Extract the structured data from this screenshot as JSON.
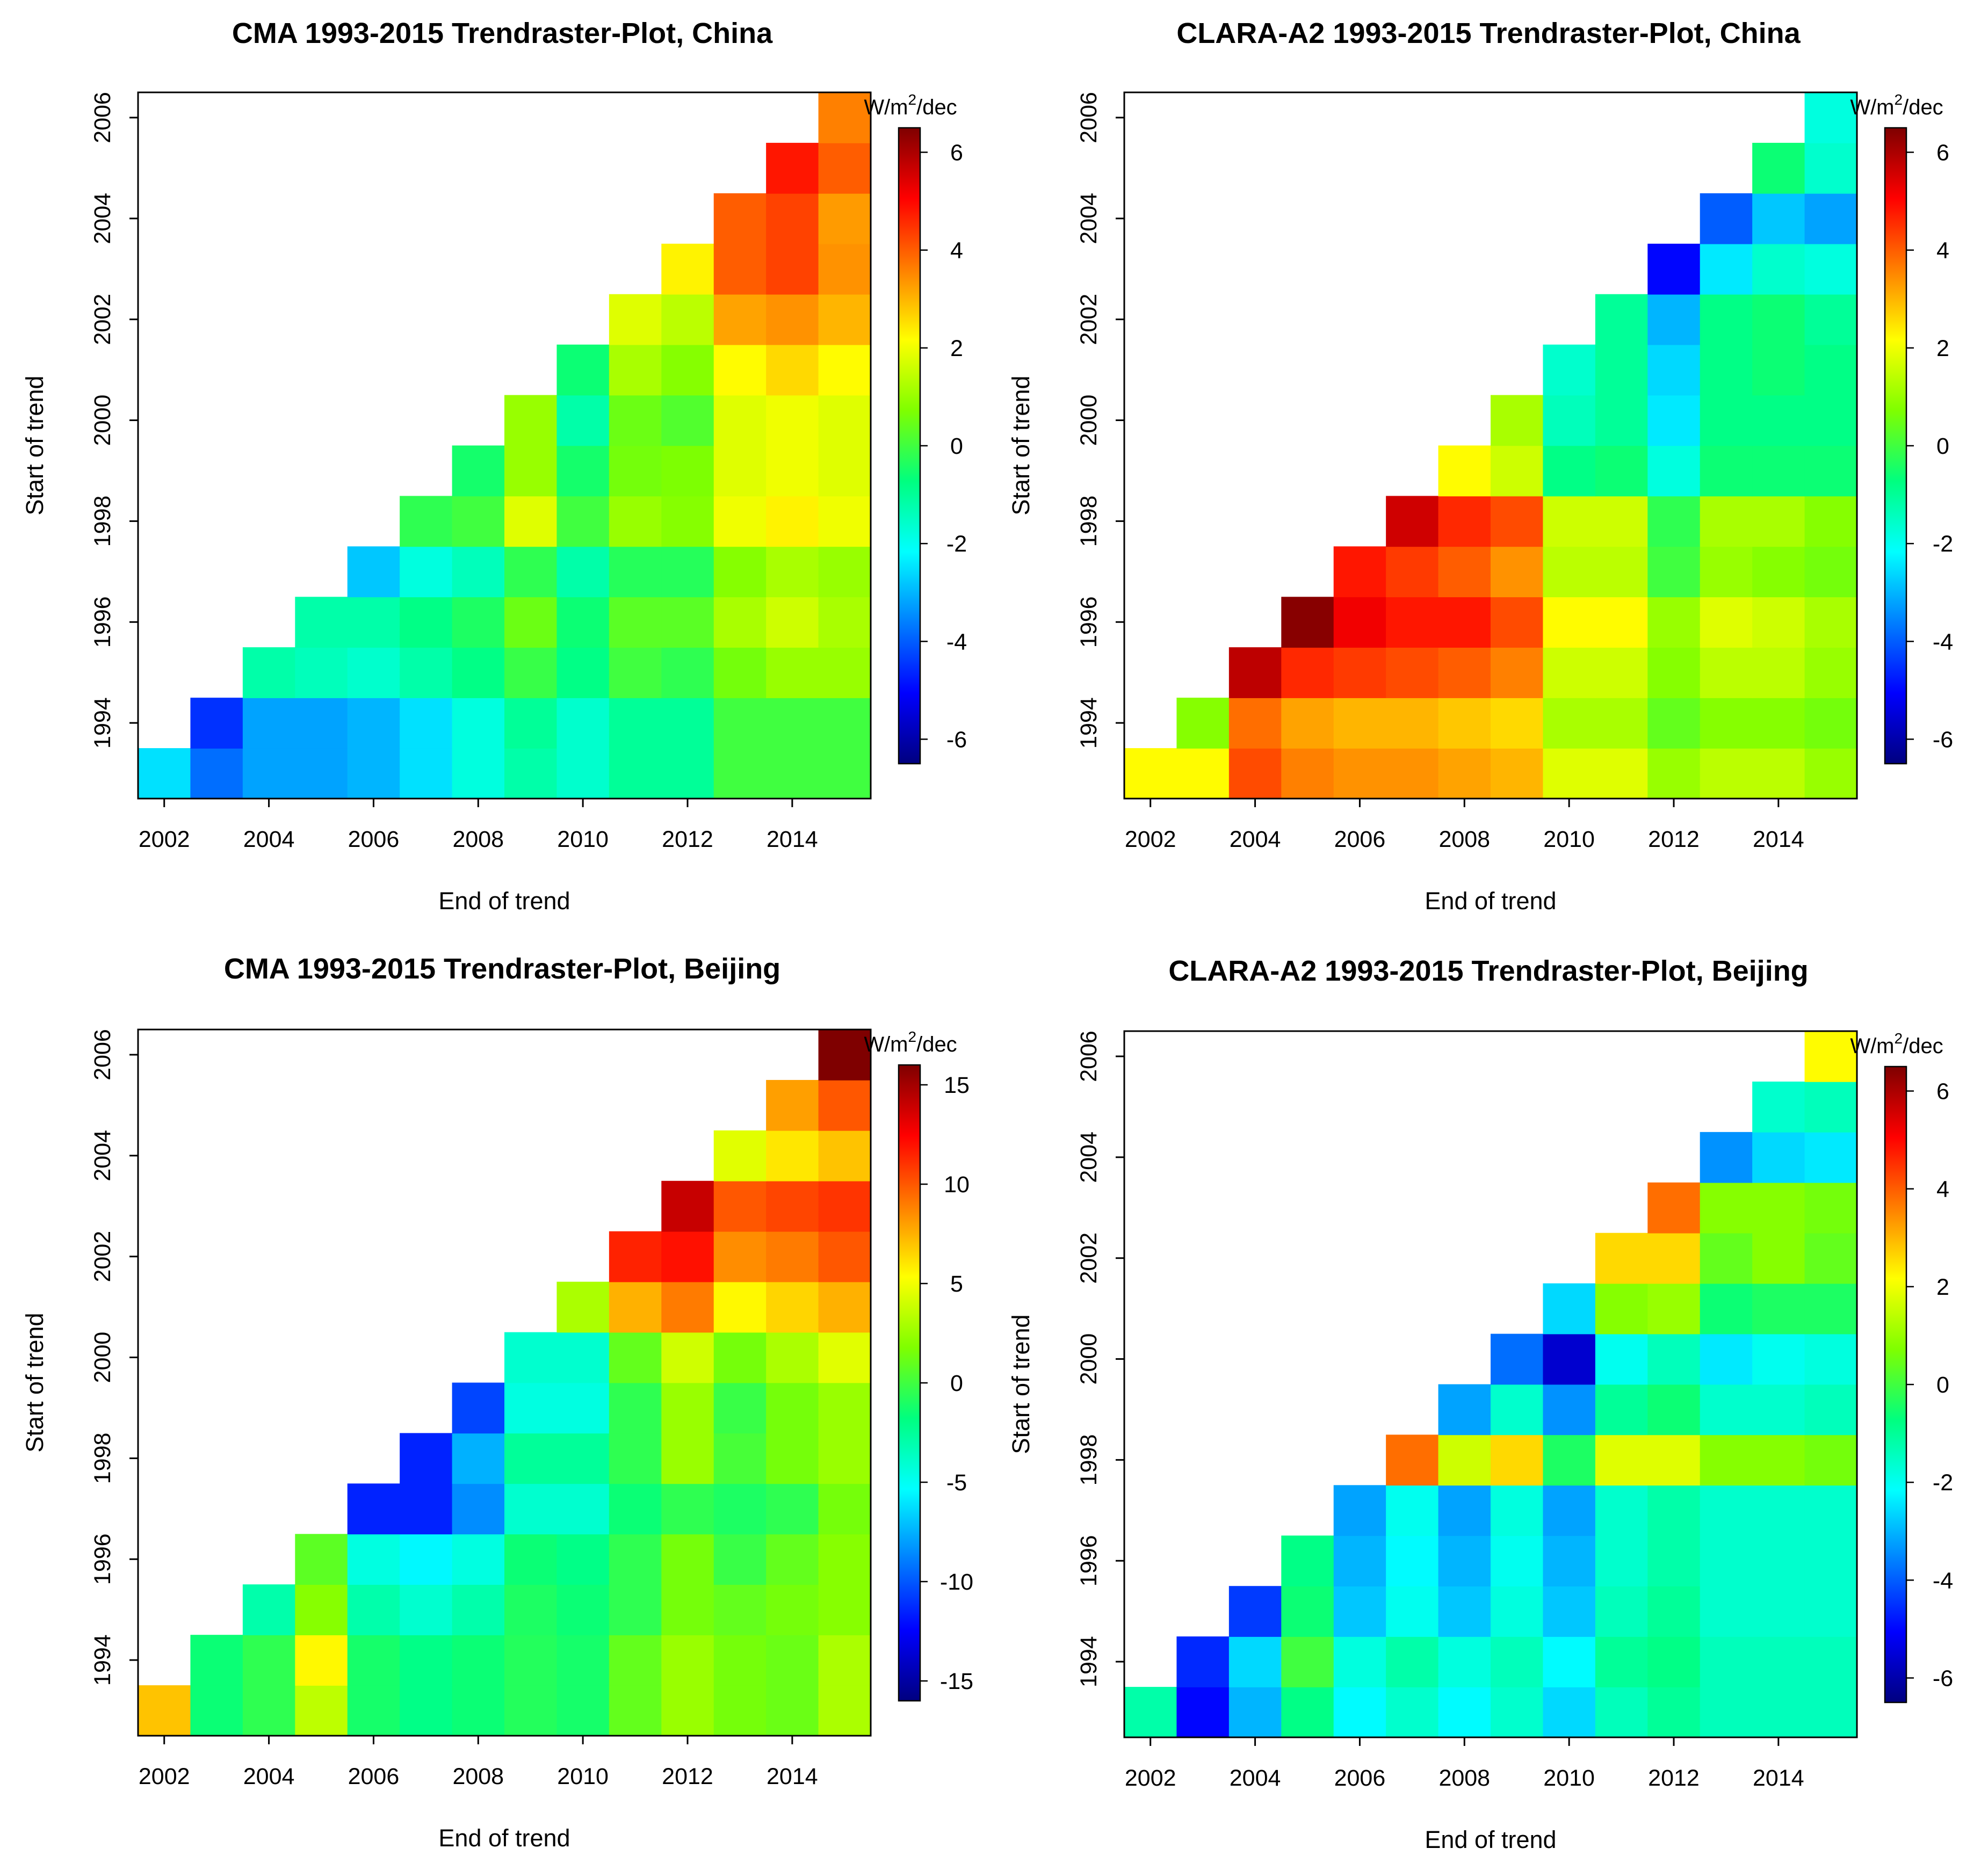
{
  "figure": {
    "colors": {
      "palette": [
        "#00007F",
        "#0000FF",
        "#007FFF",
        "#00FFFF",
        "#00FF7F",
        "#7FFF00",
        "#FFFF00",
        "#FF7F00",
        "#FF0000",
        "#7F0000"
      ],
      "axis": "#000000",
      "background": "#FFFFFF"
    }
  },
  "chart_data": [
    {
      "type": "heatmap",
      "title": "CMA 1993-2015 Trendraster-Plot, China",
      "xlabel": "End of trend",
      "ylabel": "Start of trend",
      "unit_label": {
        "prefix": "W/m",
        "sup": "2",
        "suffix": "/dec"
      },
      "x_ticks": [
        "2002",
        "2004",
        "2006",
        "2008",
        "2010",
        "2012",
        "2014"
      ],
      "y_ticks": [
        "1994",
        "1996",
        "1998",
        "2000",
        "2002",
        "2004",
        "2006"
      ],
      "x_years": [
        2002,
        2003,
        2004,
        2005,
        2006,
        2007,
        2008,
        2009,
        2010,
        2011,
        2012,
        2013,
        2014,
        2015
      ],
      "y_years": [
        1993,
        1994,
        1995,
        1996,
        1997,
        1998,
        1999,
        2000,
        2001,
        2002,
        2003,
        2004,
        2005,
        2006
      ],
      "colorbar": {
        "min": -6.5,
        "max": 6.5,
        "ticks": [
          "-6",
          "-4",
          "-2",
          "0",
          "2",
          "4",
          "6"
        ]
      },
      "values": [
        [
          -2.5,
          -3.8,
          -3.2,
          -3.2,
          -3.0,
          -2.5,
          -1.8,
          -1.2,
          -1.6,
          -1.0,
          -1.0,
          0.0,
          0.0,
          0.0
        ],
        [
          null,
          -4.5,
          -3.2,
          -3.2,
          -3.0,
          -2.5,
          -1.8,
          -1.0,
          -1.6,
          -1.0,
          -1.0,
          0.0,
          0.0,
          0.0
        ],
        [
          null,
          null,
          -1.2,
          -1.4,
          -1.6,
          -1.2,
          -0.8,
          -0.1,
          -0.8,
          0.0,
          -0.2,
          0.6,
          1.0,
          1.0
        ],
        [
          null,
          null,
          null,
          -1.2,
          -1.2,
          -0.8,
          -0.4,
          0.5,
          -0.6,
          0.3,
          0.3,
          1.2,
          1.6,
          1.2
        ],
        [
          null,
          null,
          null,
          null,
          -2.8,
          -1.8,
          -1.4,
          -0.2,
          -1.2,
          -0.3,
          -0.3,
          0.8,
          1.2,
          1.0
        ],
        [
          null,
          null,
          null,
          null,
          null,
          -0.2,
          0.0,
          1.8,
          0.0,
          1.0,
          0.8,
          2.0,
          2.3,
          2.0
        ],
        [
          null,
          null,
          null,
          null,
          null,
          null,
          -0.5,
          1.0,
          -0.5,
          0.6,
          0.7,
          1.8,
          2.0,
          1.8
        ],
        [
          null,
          null,
          null,
          null,
          null,
          null,
          null,
          1.0,
          -1.2,
          0.5,
          0.2,
          1.8,
          2.0,
          1.8
        ],
        [
          null,
          null,
          null,
          null,
          null,
          null,
          null,
          null,
          -0.6,
          1.2,
          0.8,
          2.2,
          2.6,
          2.2
        ],
        [
          null,
          null,
          null,
          null,
          null,
          null,
          null,
          null,
          null,
          1.8,
          1.4,
          3.2,
          3.4,
          3.0
        ],
        [
          null,
          null,
          null,
          null,
          null,
          null,
          null,
          null,
          null,
          null,
          2.3,
          4.0,
          4.3,
          3.4
        ],
        [
          null,
          null,
          null,
          null,
          null,
          null,
          null,
          null,
          null,
          null,
          null,
          4.0,
          4.3,
          3.3
        ],
        [
          null,
          null,
          null,
          null,
          null,
          null,
          null,
          null,
          null,
          null,
          null,
          null,
          4.8,
          4.0
        ],
        [
          null,
          null,
          null,
          null,
          null,
          null,
          null,
          null,
          null,
          null,
          null,
          null,
          null,
          3.6
        ]
      ]
    },
    {
      "type": "heatmap",
      "title": "CLARA-A2 1993-2015 Trendraster-Plot, China",
      "xlabel": "End of trend",
      "ylabel": "Start of trend",
      "unit_label": {
        "prefix": "W/m",
        "sup": "2",
        "suffix": "/dec"
      },
      "x_ticks": [
        "2002",
        "2004",
        "2006",
        "2008",
        "2010",
        "2012",
        "2014"
      ],
      "y_ticks": [
        "1994",
        "1996",
        "1998",
        "2000",
        "2002",
        "2004",
        "2006"
      ],
      "x_years": [
        2002,
        2003,
        2004,
        2005,
        2006,
        2007,
        2008,
        2009,
        2010,
        2011,
        2012,
        2013,
        2014,
        2015
      ],
      "y_years": [
        1993,
        1994,
        1995,
        1996,
        1997,
        1998,
        1999,
        2000,
        2001,
        2002,
        2003,
        2004,
        2005,
        2006
      ],
      "colorbar": {
        "min": -6.5,
        "max": 6.5,
        "ticks": [
          "-6",
          "-4",
          "-2",
          "0",
          "2",
          "4",
          "6"
        ]
      },
      "values": [
        [
          2.2,
          2.2,
          4.2,
          3.6,
          3.4,
          3.4,
          3.2,
          3.0,
          1.8,
          1.8,
          1.0,
          1.4,
          1.4,
          1.0
        ],
        [
          null,
          0.8,
          3.8,
          3.2,
          3.0,
          3.0,
          2.8,
          2.6,
          1.2,
          1.2,
          0.4,
          0.8,
          0.8,
          0.6
        ],
        [
          null,
          null,
          5.8,
          4.6,
          4.4,
          4.2,
          4.0,
          3.6,
          1.6,
          1.6,
          0.8,
          1.4,
          1.4,
          1.0
        ],
        [
          null,
          null,
          null,
          6.4,
          5.2,
          4.8,
          4.8,
          4.2,
          2.2,
          2.2,
          1.0,
          1.8,
          1.6,
          1.2
        ],
        [
          null,
          null,
          null,
          null,
          4.8,
          4.4,
          4.0,
          3.4,
          1.4,
          1.4,
          0.0,
          1.0,
          0.8,
          0.6
        ],
        [
          null,
          null,
          null,
          null,
          null,
          5.6,
          4.6,
          4.2,
          1.6,
          1.6,
          -0.2,
          1.2,
          1.2,
          0.8
        ],
        [
          null,
          null,
          null,
          null,
          null,
          null,
          2.2,
          1.6,
          -0.8,
          -0.6,
          -1.8,
          -0.6,
          -0.6,
          -0.6
        ],
        [
          null,
          null,
          null,
          null,
          null,
          null,
          null,
          1.2,
          -1.4,
          -1.0,
          -2.4,
          -0.8,
          -0.8,
          -0.8
        ],
        [
          null,
          null,
          null,
          null,
          null,
          null,
          null,
          null,
          -1.6,
          -1.0,
          -2.6,
          -0.8,
          -0.6,
          -0.8
        ],
        [
          null,
          null,
          null,
          null,
          null,
          null,
          null,
          null,
          null,
          -1.0,
          -3.0,
          -0.8,
          -0.6,
          -1.0
        ],
        [
          null,
          null,
          null,
          null,
          null,
          null,
          null,
          null,
          null,
          null,
          -5.0,
          -2.4,
          -1.6,
          -1.8
        ],
        [
          null,
          null,
          null,
          null,
          null,
          null,
          null,
          null,
          null,
          null,
          null,
          -4.0,
          -2.8,
          -3.2
        ],
        [
          null,
          null,
          null,
          null,
          null,
          null,
          null,
          null,
          null,
          null,
          null,
          null,
          -0.6,
          -1.6
        ],
        [
          null,
          null,
          null,
          null,
          null,
          null,
          null,
          null,
          null,
          null,
          null,
          null,
          null,
          -1.8
        ]
      ]
    },
    {
      "type": "heatmap",
      "title": "CMA 1993-2015 Trendraster-Plot, Beijing",
      "xlabel": "End of trend",
      "ylabel": "Start of trend",
      "unit_label": {
        "prefix": "W/m",
        "sup": "2",
        "suffix": "/dec"
      },
      "x_ticks": [
        "2002",
        "2004",
        "2006",
        "2008",
        "2010",
        "2012",
        "2014"
      ],
      "y_ticks": [
        "1994",
        "1996",
        "1998",
        "2000",
        "2002",
        "2004",
        "2006"
      ],
      "x_years": [
        2002,
        2003,
        2004,
        2005,
        2006,
        2007,
        2008,
        2009,
        2010,
        2011,
        2012,
        2013,
        2014,
        2015
      ],
      "y_years": [
        1993,
        1994,
        1995,
        1996,
        1997,
        1998,
        1999,
        2000,
        2001,
        2002,
        2003,
        2004,
        2005,
        2006
      ],
      "colorbar": {
        "min": -16,
        "max": 16,
        "ticks": [
          "-15",
          "-10",
          "-5",
          "0",
          "5",
          "10",
          "15"
        ]
      },
      "values": [
        [
          7.0,
          -1.5,
          -0.5,
          3.5,
          -1.2,
          -2.0,
          -1.5,
          -0.8,
          -1.2,
          1.0,
          2.5,
          1.5,
          1.2,
          3.0
        ],
        [
          null,
          -1.5,
          -0.5,
          5.5,
          -1.2,
          -2.0,
          -1.5,
          -0.8,
          -1.2,
          1.0,
          2.5,
          1.5,
          1.2,
          3.0
        ],
        [
          null,
          null,
          -3.0,
          2.0,
          -3.0,
          -4.0,
          -3.0,
          -1.0,
          -1.5,
          -0.5,
          1.5,
          1.0,
          1.5,
          2.0
        ],
        [
          null,
          null,
          null,
          0.8,
          -4.5,
          -5.5,
          -4.5,
          -1.5,
          -2.0,
          -0.5,
          1.5,
          -0.2,
          1.0,
          2.0
        ],
        [
          null,
          null,
          null,
          null,
          -11.5,
          -11.5,
          -8.5,
          -4.0,
          -4.0,
          -1.5,
          -0.5,
          -1.0,
          -0.5,
          1.5
        ],
        [
          null,
          null,
          null,
          null,
          null,
          -11.5,
          -7.5,
          -2.5,
          -2.5,
          -0.5,
          2.5,
          0.2,
          1.5,
          2.5
        ],
        [
          null,
          null,
          null,
          null,
          null,
          null,
          -10.5,
          -4.5,
          -4.5,
          -0.5,
          2.5,
          -0.2,
          1.5,
          2.5
        ],
        [
          null,
          null,
          null,
          null,
          null,
          null,
          null,
          -4.0,
          -4.0,
          1.0,
          4.0,
          1.5,
          3.0,
          4.5
        ],
        [
          null,
          null,
          null,
          null,
          null,
          null,
          null,
          null,
          3.0,
          7.5,
          9.0,
          5.5,
          6.5,
          7.5
        ],
        [
          null,
          null,
          null,
          null,
          null,
          null,
          null,
          null,
          null,
          11.5,
          12.0,
          8.5,
          9.0,
          10.0
        ],
        [
          null,
          null,
          null,
          null,
          null,
          null,
          null,
          null,
          null,
          null,
          14.0,
          10.0,
          10.5,
          11.0
        ],
        [
          null,
          null,
          null,
          null,
          null,
          null,
          null,
          null,
          null,
          null,
          null,
          4.5,
          6.0,
          7.0
        ],
        [
          null,
          null,
          null,
          null,
          null,
          null,
          null,
          null,
          null,
          null,
          null,
          null,
          8.0,
          10.0
        ],
        [
          null,
          null,
          null,
          null,
          null,
          null,
          null,
          null,
          null,
          null,
          null,
          null,
          null,
          16.0
        ]
      ]
    },
    {
      "type": "heatmap",
      "title": "CLARA-A2 1993-2015 Trendraster-Plot, Beijing",
      "xlabel": "End of trend",
      "ylabel": "Start of trend",
      "unit_label": {
        "prefix": "W/m",
        "sup": "2",
        "suffix": "/dec"
      },
      "x_ticks": [
        "2002",
        "2004",
        "2006",
        "2008",
        "2010",
        "2012",
        "2014"
      ],
      "y_ticks": [
        "1994",
        "1996",
        "1998",
        "2000",
        "2002",
        "2004",
        "2006"
      ],
      "x_years": [
        2002,
        2003,
        2004,
        2005,
        2006,
        2007,
        2008,
        2009,
        2010,
        2011,
        2012,
        2013,
        2014,
        2015
      ],
      "y_years": [
        1993,
        1994,
        1995,
        1996,
        1997,
        1998,
        1999,
        2000,
        2001,
        2002,
        2003,
        2004,
        2005,
        2006
      ],
      "colorbar": {
        "min": -6.5,
        "max": 6.5,
        "ticks": [
          "-6",
          "-4",
          "-2",
          "0",
          "2",
          "4",
          "6"
        ]
      },
      "values": [
        [
          -1.2,
          -5.0,
          -3.0,
          -0.8,
          -2.2,
          -1.6,
          -2.2,
          -1.6,
          -2.6,
          -1.4,
          -1.0,
          -1.4,
          -1.4,
          -1.4
        ],
        [
          null,
          -4.6,
          -2.6,
          0.0,
          -1.8,
          -1.2,
          -1.8,
          -1.4,
          -2.2,
          -1.0,
          -0.8,
          -1.4,
          -1.4,
          -1.4
        ],
        [
          null,
          null,
          -4.4,
          -0.6,
          -2.8,
          -2.0,
          -2.8,
          -1.8,
          -2.8,
          -1.4,
          -1.0,
          -1.6,
          -1.6,
          -1.6
        ],
        [
          null,
          null,
          null,
          -0.8,
          -3.0,
          -2.2,
          -3.0,
          -2.0,
          -3.0,
          -1.6,
          -1.2,
          -1.6,
          -1.6,
          -1.6
        ],
        [
          null,
          null,
          null,
          null,
          -3.2,
          -2.0,
          -3.2,
          -1.8,
          -3.2,
          -1.6,
          -1.2,
          -1.6,
          -1.6,
          -1.6
        ],
        [
          null,
          null,
          null,
          null,
          null,
          3.8,
          1.6,
          2.6,
          -0.4,
          1.8,
          1.8,
          0.8,
          0.8,
          0.6
        ],
        [
          null,
          null,
          null,
          null,
          null,
          null,
          -3.2,
          -1.6,
          -3.4,
          -1.0,
          -0.6,
          -1.6,
          -1.6,
          -1.4
        ],
        [
          null,
          null,
          null,
          null,
          null,
          null,
          null,
          -3.8,
          -5.6,
          -2.0,
          -1.4,
          -2.4,
          -2.0,
          -1.8
        ],
        [
          null,
          null,
          null,
          null,
          null,
          null,
          null,
          null,
          -2.6,
          0.8,
          1.0,
          -0.6,
          -0.4,
          -0.4
        ],
        [
          null,
          null,
          null,
          null,
          null,
          null,
          null,
          null,
          null,
          2.6,
          2.6,
          0.4,
          0.8,
          0.4
        ],
        [
          null,
          null,
          null,
          null,
          null,
          null,
          null,
          null,
          null,
          null,
          3.8,
          0.8,
          0.8,
          0.6
        ],
        [
          null,
          null,
          null,
          null,
          null,
          null,
          null,
          null,
          null,
          null,
          null,
          -3.4,
          -2.6,
          -2.4
        ],
        [
          null,
          null,
          null,
          null,
          null,
          null,
          null,
          null,
          null,
          null,
          null,
          null,
          -1.6,
          -1.4
        ],
        [
          null,
          null,
          null,
          null,
          null,
          null,
          null,
          null,
          null,
          null,
          null,
          null,
          null,
          2.2
        ]
      ]
    }
  ]
}
